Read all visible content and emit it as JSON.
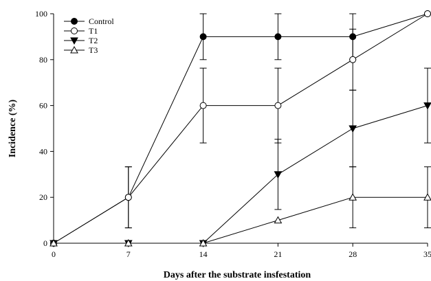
{
  "chart_data": {
    "type": "line",
    "title": "",
    "xlabel": "Days after the substrate insfestation",
    "ylabel": "Incidence (%)",
    "x": [
      0,
      7,
      14,
      21,
      28,
      35
    ],
    "xticks": [
      "0",
      "7",
      "14",
      "21",
      "28",
      "35"
    ],
    "yticks": [
      "0",
      "20",
      "40",
      "60",
      "80",
      "100"
    ],
    "xlim": [
      0,
      35
    ],
    "ylim": [
      0,
      100
    ],
    "grid": false,
    "legend_position": "top-left",
    "series": [
      {
        "name": "Control",
        "marker": "filled-circle",
        "values": [
          0,
          20,
          90,
          90,
          90,
          100
        ],
        "errors": [
          0,
          13.3,
          10,
          10,
          10,
          0
        ]
      },
      {
        "name": "T1",
        "marker": "open-circle",
        "values": [
          0,
          20,
          60,
          60,
          80,
          100
        ],
        "errors": [
          0,
          13.3,
          16.3,
          16.3,
          13.3,
          0
        ]
      },
      {
        "name": "T2",
        "marker": "filled-triangle-down",
        "values": [
          0,
          0,
          0,
          30,
          50,
          60
        ],
        "errors": [
          0,
          0,
          0,
          15.3,
          16.7,
          16.3
        ]
      },
      {
        "name": "T3",
        "marker": "open-triangle-up",
        "values": [
          0,
          0,
          0,
          10,
          20,
          20
        ],
        "errors": [
          0,
          0,
          0,
          0,
          13.3,
          13.3
        ]
      }
    ],
    "colors": {
      "line": "#000000",
      "background": "#ffffff"
    }
  }
}
